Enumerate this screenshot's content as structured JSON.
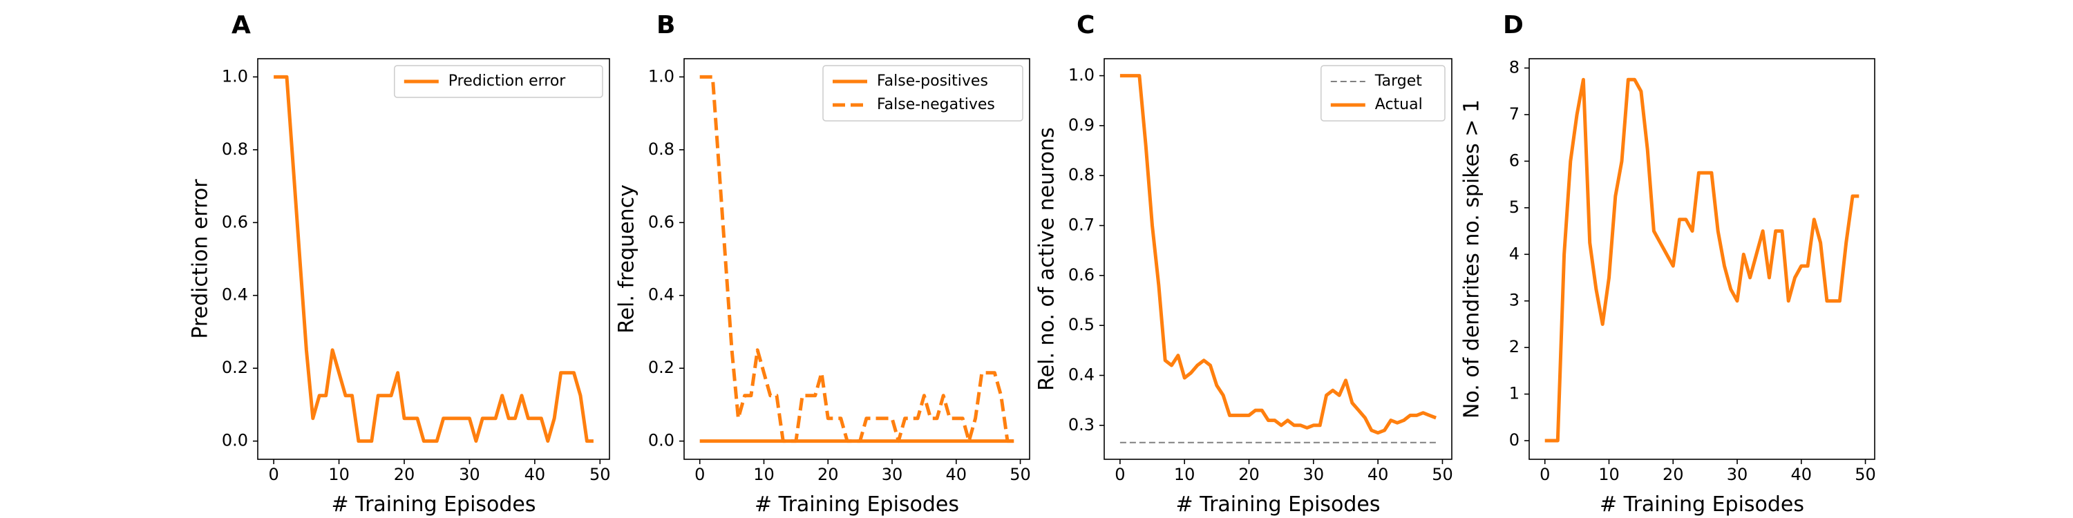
{
  "figure": {
    "xlabel_common": "# Training Episodes"
  },
  "colors": {
    "series": "#ff7f0e",
    "target": "#808080",
    "axes": "#000000",
    "background": "#ffffff"
  },
  "chart_data": [
    {
      "panel": "A",
      "type": "line",
      "xlabel": "# Training Episodes",
      "ylabel": "Prediction error",
      "xlim": [
        -2.45,
        51.45
      ],
      "ylim": [
        -0.05,
        1.05
      ],
      "xticks": [
        0,
        10,
        20,
        30,
        40,
        50
      ],
      "yticks": [
        0.0,
        0.2,
        0.4,
        0.6,
        0.8,
        1.0
      ],
      "ytick_labels": [
        "0.0",
        "0.2",
        "0.4",
        "0.6",
        "0.8",
        "1.0"
      ],
      "legend": "upper right",
      "series": [
        {
          "name": "Prediction error",
          "style": "solid",
          "color": "#ff7f0e",
          "x": [
            0,
            1,
            2,
            3,
            4,
            5,
            6,
            7,
            8,
            9,
            10,
            11,
            12,
            13,
            14,
            15,
            16,
            17,
            18,
            19,
            20,
            21,
            22,
            23,
            24,
            25,
            26,
            27,
            28,
            29,
            30,
            31,
            32,
            33,
            34,
            35,
            36,
            37,
            38,
            39,
            40,
            41,
            42,
            43,
            44,
            45,
            46,
            47,
            48,
            49
          ],
          "y": [
            1.0,
            1.0,
            1.0,
            0.75,
            0.5,
            0.25,
            0.0625,
            0.125,
            0.125,
            0.25,
            0.1875,
            0.125,
            0.125,
            0.0,
            0.0,
            0.0,
            0.125,
            0.125,
            0.125,
            0.1875,
            0.0625,
            0.0625,
            0.0625,
            0.0,
            0.0,
            0.0,
            0.0625,
            0.0625,
            0.0625,
            0.0625,
            0.0625,
            0.0,
            0.0625,
            0.0625,
            0.0625,
            0.125,
            0.0625,
            0.0625,
            0.125,
            0.0625,
            0.0625,
            0.0625,
            0.0,
            0.0625,
            0.1875,
            0.1875,
            0.1875,
            0.125,
            0.0,
            0.0
          ]
        }
      ]
    },
    {
      "panel": "B",
      "type": "line",
      "xlabel": "# Training Episodes",
      "ylabel": "Rel. frequency",
      "xlim": [
        -2.45,
        51.45
      ],
      "ylim": [
        -0.05,
        1.05
      ],
      "xticks": [
        0,
        10,
        20,
        30,
        40,
        50
      ],
      "yticks": [
        0.0,
        0.2,
        0.4,
        0.6,
        0.8,
        1.0
      ],
      "ytick_labels": [
        "0.0",
        "0.2",
        "0.4",
        "0.6",
        "0.8",
        "1.0"
      ],
      "legend": "upper right",
      "series": [
        {
          "name": "False-positives",
          "style": "solid",
          "color": "#ff7f0e",
          "x": [
            0,
            49
          ],
          "y": [
            0.0,
            0.0
          ]
        },
        {
          "name": "False-negatives",
          "style": "dashed",
          "color": "#ff7f0e",
          "x": [
            0,
            1,
            2,
            3,
            4,
            5,
            6,
            7,
            8,
            9,
            10,
            11,
            12,
            13,
            14,
            15,
            16,
            17,
            18,
            19,
            20,
            21,
            22,
            23,
            24,
            25,
            26,
            27,
            28,
            29,
            30,
            31,
            32,
            33,
            34,
            35,
            36,
            37,
            38,
            39,
            40,
            41,
            42,
            43,
            44,
            45,
            46,
            47,
            48,
            49
          ],
          "y": [
            1.0,
            1.0,
            1.0,
            0.75,
            0.5,
            0.25,
            0.0625,
            0.125,
            0.125,
            0.25,
            0.1875,
            0.125,
            0.125,
            0.0,
            0.0,
            0.0,
            0.125,
            0.125,
            0.125,
            0.1875,
            0.0625,
            0.0625,
            0.0625,
            0.0,
            0.0,
            0.0,
            0.0625,
            0.0625,
            0.0625,
            0.0625,
            0.0625,
            0.0,
            0.0625,
            0.0625,
            0.0625,
            0.125,
            0.0625,
            0.0625,
            0.125,
            0.0625,
            0.0625,
            0.0625,
            0.0,
            0.0625,
            0.1875,
            0.1875,
            0.1875,
            0.125,
            0.0,
            0.0
          ]
        }
      ]
    },
    {
      "panel": "C",
      "type": "line",
      "xlabel": "# Training Episodes",
      "ylabel": "Rel. no. of active neurons",
      "xlim": [
        -2.45,
        51.45
      ],
      "ylim": [
        0.232,
        1.034
      ],
      "xticks": [
        0,
        10,
        20,
        30,
        40,
        50
      ],
      "yticks": [
        0.3,
        0.4,
        0.5,
        0.6,
        0.7,
        0.8,
        0.9,
        1.0
      ],
      "ytick_labels": [
        "0.3",
        "0.4",
        "0.5",
        "0.6",
        "0.7",
        "0.8",
        "0.9",
        "1.0"
      ],
      "legend": "upper right",
      "series": [
        {
          "name": "Target",
          "style": "dashed",
          "color": "#808080",
          "x": [
            0,
            49
          ],
          "y": [
            0.2656,
            0.2656
          ]
        },
        {
          "name": "Actual",
          "style": "solid",
          "color": "#ff7f0e",
          "x": [
            0,
            1,
            2,
            3,
            4,
            5,
            6,
            7,
            8,
            9,
            10,
            11,
            12,
            13,
            14,
            15,
            16,
            17,
            18,
            19,
            20,
            21,
            22,
            23,
            24,
            25,
            26,
            27,
            28,
            29,
            30,
            31,
            32,
            33,
            34,
            35,
            36,
            37,
            38,
            39,
            40,
            41,
            42,
            43,
            44,
            45,
            46,
            47,
            48,
            49
          ],
          "y": [
            1.0,
            1.0,
            1.0,
            1.0,
            0.86,
            0.7,
            0.58,
            0.43,
            0.42,
            0.44,
            0.395,
            0.405,
            0.42,
            0.43,
            0.42,
            0.38,
            0.36,
            0.32,
            0.32,
            0.32,
            0.32,
            0.33,
            0.33,
            0.31,
            0.31,
            0.3,
            0.31,
            0.3,
            0.3,
            0.295,
            0.3,
            0.3,
            0.36,
            0.37,
            0.36,
            0.39,
            0.345,
            0.33,
            0.315,
            0.29,
            0.285,
            0.29,
            0.31,
            0.305,
            0.31,
            0.32,
            0.32,
            0.325,
            0.32,
            0.315
          ]
        }
      ]
    },
    {
      "panel": "D",
      "type": "line",
      "xlabel": "# Training Episodes",
      "ylabel": "No. of dendrites no. spikes > 1",
      "xlim": [
        -2.45,
        51.45
      ],
      "ylim": [
        -0.4,
        8.2
      ],
      "xticks": [
        0,
        10,
        20,
        30,
        40,
        50
      ],
      "yticks": [
        0,
        1,
        2,
        3,
        4,
        5,
        6,
        7,
        8
      ],
      "ytick_labels": [
        "0",
        "1",
        "2",
        "3",
        "4",
        "5",
        "6",
        "7",
        "8"
      ],
      "legend": "none",
      "series": [
        {
          "color": "#ff7f0e",
          "style": "solid",
          "x": [
            0,
            1,
            2,
            3,
            4,
            5,
            6,
            7,
            8,
            9,
            10,
            11,
            12,
            13,
            14,
            15,
            16,
            17,
            18,
            19,
            20,
            21,
            22,
            23,
            24,
            25,
            26,
            27,
            28,
            29,
            30,
            31,
            32,
            33,
            34,
            35,
            36,
            37,
            38,
            39,
            40,
            41,
            42,
            43,
            44,
            45,
            46,
            47,
            48,
            49
          ],
          "y": [
            0,
            0,
            0,
            4,
            6,
            7,
            7.75,
            4.25,
            3.25,
            2.5,
            3.5,
            5.25,
            6,
            7.75,
            7.75,
            7.5,
            6.25,
            4.5,
            4.25,
            4,
            3.75,
            4.75,
            4.75,
            4.5,
            5.75,
            5.75,
            5.75,
            4.5,
            3.75,
            3.25,
            3.0,
            4.0,
            3.5,
            4.0,
            4.5,
            3.5,
            4.5,
            4.5,
            3.0,
            3.5,
            3.75,
            3.75,
            4.75,
            4.25,
            3.0,
            3.0,
            3.0,
            4.25,
            5.25,
            5.25
          ]
        }
      ]
    }
  ]
}
